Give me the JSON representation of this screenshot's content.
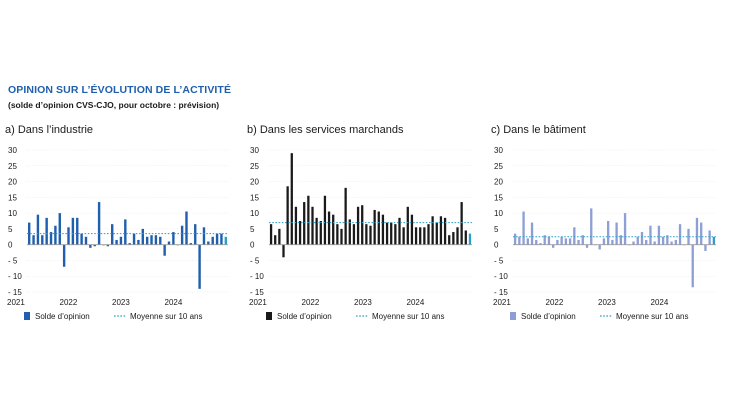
{
  "figure": {
    "title": "OPINION SUR L’ÉVOLUTION DE L’ACTIVITÉ",
    "subtitle": "(solde d’opinion CVS-CJO, pour octobre : prévision)"
  },
  "colors": {
    "title": "#1f5fae",
    "industry_bar": "#1f5fae",
    "services_bar": "#1a1a1a",
    "construction_bar": "#8d9fd6",
    "mean_line": "#2aa0c8",
    "forecast_bar": "#2aa0c8",
    "zero_line": "#9a9a9a"
  },
  "chart_data": [
    {
      "type": "bar",
      "panel_label": "a)  Dans l’industrie",
      "x_ticks": [
        "2021",
        "2022",
        "2023",
        "2024"
      ],
      "ylim": [
        -15,
        30
      ],
      "y_ticks": [
        "30",
        "25",
        "20",
        "15",
        "10",
        "5",
        "0",
        "- 5",
        "- 10",
        "- 15"
      ],
      "series": [
        {
          "name": "Solde d’opinion",
          "values": [
            7,
            3,
            9.5,
            3,
            8.5,
            4,
            6,
            10,
            -7,
            5.5,
            8.5,
            8.5,
            3.5,
            2.5,
            -1,
            -0.5,
            13.5,
            0,
            -0.5,
            6.5,
            1.5,
            2.5,
            8,
            0.5,
            3.5,
            1.5,
            5,
            2.5,
            3,
            3,
            2.5,
            -3.5,
            1,
            4,
            0,
            6,
            10.5,
            0.5,
            6.5,
            -14,
            5.5,
            1,
            2.5,
            3.5,
            3.5,
            2.5
          ]
        },
        {
          "name": "Moyenne sur 10 ans",
          "value": 3.5
        }
      ]
    },
    {
      "type": "bar",
      "panel_label": "b)  Dans les services marchands",
      "x_ticks": [
        "2021",
        "2022",
        "2023",
        "2024"
      ],
      "ylim": [
        -15,
        30
      ],
      "y_ticks": [
        "30",
        "25",
        "20",
        "15",
        "10",
        "5",
        "0",
        "- 5",
        "- 10",
        "- 15"
      ],
      "series": [
        {
          "name": "Solde d’opinion",
          "values": [
            6.5,
            3,
            5,
            -4,
            18.5,
            29,
            12,
            7.5,
            13.5,
            15.5,
            12,
            8.5,
            7.5,
            15.5,
            10.5,
            9.5,
            6.5,
            5,
            18,
            8,
            6.5,
            12,
            12.5,
            6.5,
            6,
            11,
            10.5,
            9.5,
            7,
            7,
            6.5,
            8.5,
            5.5,
            12,
            9.5,
            5.5,
            5.5,
            5.5,
            6.5,
            9,
            7,
            9,
            8.5,
            3,
            4,
            5.5,
            13.5,
            4.5,
            3.5
          ]
        },
        {
          "name": "Moyenne sur 10 ans",
          "value": 7
        }
      ]
    },
    {
      "type": "bar",
      "panel_label": "c)  Dans le bâtiment",
      "x_ticks": [
        "2021",
        "2022",
        "2023",
        "2024"
      ],
      "ylim": [
        -15,
        30
      ],
      "y_ticks": [
        "30",
        "25",
        "20",
        "15",
        "10",
        "5",
        "0",
        "- 5",
        "- 10",
        "- 15"
      ],
      "series": [
        {
          "name": "Solde d’opinion",
          "values": [
            3.5,
            2.5,
            10.5,
            2,
            7,
            1.5,
            0.5,
            3,
            2.5,
            -1,
            1.5,
            2.5,
            2,
            2,
            5.5,
            1.5,
            3,
            -1,
            11.5,
            0,
            -1.5,
            2,
            7.5,
            1.5,
            7,
            3,
            10,
            0,
            1,
            2.5,
            4,
            1.5,
            6,
            1,
            6,
            2.5,
            3,
            1,
            1.5,
            6.5,
            0,
            5,
            -13.5,
            8.5,
            7,
            -2,
            4.5,
            2.5
          ]
        },
        {
          "name": "Moyenne sur 10 ans",
          "value": 2.5
        }
      ]
    }
  ]
}
